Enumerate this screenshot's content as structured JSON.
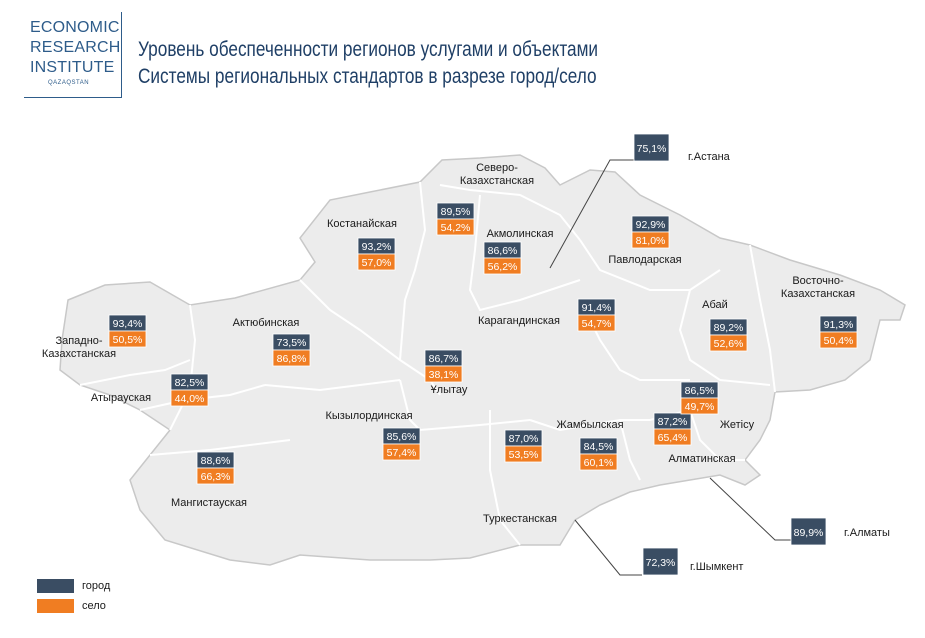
{
  "logo": {
    "line1": "ECONOMIC",
    "line2": "RESEARCH",
    "line3": "INSTITUTE",
    "sub": "QAZAQSTAN"
  },
  "title": {
    "line1": "Уровень обеспеченности регионов услугами и объектами",
    "line2": "Системы региональных стандартов в разрезе город/село"
  },
  "colors": {
    "city": "#3a4d63",
    "village": "#f07d22",
    "region_fill": "#ececec",
    "border": "#c8c8c8"
  },
  "legend": {
    "city": "город",
    "village": "село"
  },
  "regions": [
    {
      "name": "Костанайская",
      "city": "93,2%",
      "village": "57,0%"
    },
    {
      "name": "Северо-",
      "name2": "Казахстанская",
      "city": "89,5%",
      "village": "54,2%"
    },
    {
      "name": "Акмолинская",
      "city": "86,6%",
      "village": "56,2%"
    },
    {
      "name": "Павлодарская",
      "city": "92,9%",
      "village": "81,0%"
    },
    {
      "name": "Восточно-",
      "name2": "Казахстанская",
      "city": "91,3%",
      "village": "50,4%"
    },
    {
      "name": "Абай",
      "city": "89,2%",
      "village": "52,6%"
    },
    {
      "name": "Карагандинская",
      "city": "91,4%",
      "village": "54,7%"
    },
    {
      "name": "Ұлытау",
      "city": "86,7%",
      "village": "38,1%"
    },
    {
      "name": "Актюбинская",
      "city": "73,5%",
      "village": "86,8%"
    },
    {
      "name": "Западно-",
      "name2": "Казахстанская",
      "city": "93,4%",
      "village": "50,5%"
    },
    {
      "name": "Атырауская",
      "city": "82,5%",
      "village": "44,0%"
    },
    {
      "name": "Мангистауская",
      "city": "88,6%",
      "village": "66,3%"
    },
    {
      "name": "Кызылординская",
      "city": "85,6%",
      "village": "57,4%"
    },
    {
      "name": "Туркестанская",
      "city": "87,0%",
      "village": "53,5%"
    },
    {
      "name": "Жамбылская",
      "city": "84,5%",
      "village": "60,1%"
    },
    {
      "name": "Алматинская",
      "city": "87,2%",
      "village": "65,4%"
    },
    {
      "name": "Жетісу",
      "city": "86,5%",
      "village": "49,7%"
    }
  ],
  "cities": [
    {
      "name": "г.Астана",
      "city": "75,1%"
    },
    {
      "name": "г.Алматы",
      "city": "89,9%"
    },
    {
      "name": "г.Шымкент",
      "city": "72,3%"
    }
  ]
}
